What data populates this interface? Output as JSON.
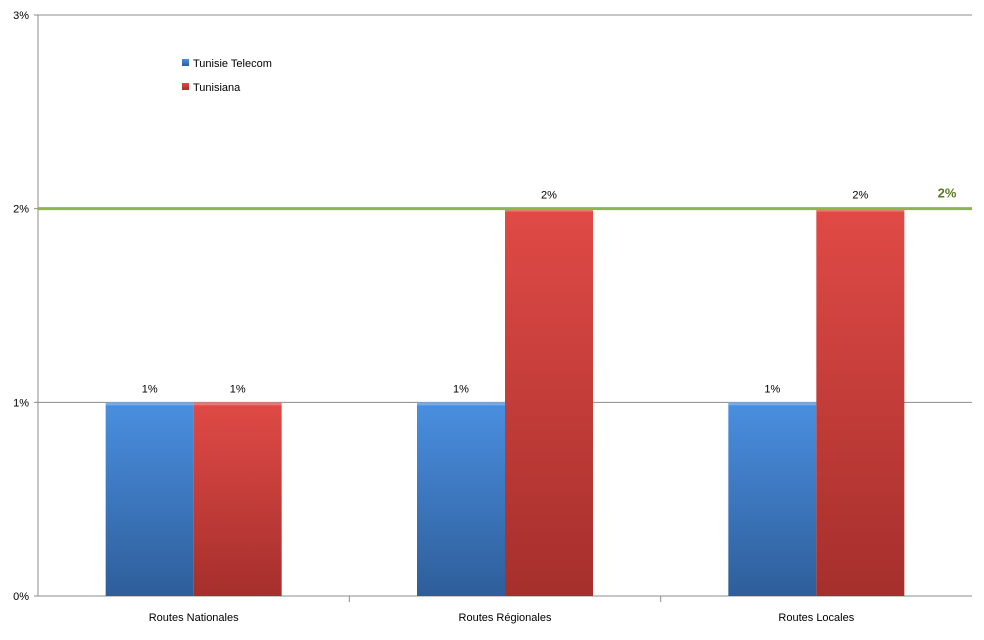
{
  "chart_data": {
    "type": "bar",
    "categories": [
      "Routes Nationales",
      "Routes Régionales",
      "Routes Locales"
    ],
    "series": [
      {
        "name": "Tunisie Telecom",
        "values": [
          1,
          1,
          1
        ],
        "labels": [
          "1%",
          "1%",
          "1%"
        ],
        "color": "#3d7fd4"
      },
      {
        "name": "Tunisiana",
        "values": [
          1,
          2,
          2
        ],
        "labels": [
          "1%",
          "2%",
          "2%"
        ],
        "color": "#d63f3c"
      }
    ],
    "ylim": [
      0,
      3
    ],
    "yticks": [
      0,
      1,
      2,
      3
    ],
    "ytick_labels": [
      "0%",
      "1%",
      "2%",
      "3%"
    ],
    "grid": true,
    "legend_position": "top-left",
    "reference_line": {
      "value": 2,
      "label": "2%",
      "color": "#8db54b",
      "label_color": "#5a7a2a"
    },
    "title": "",
    "xlabel": "",
    "ylabel": ""
  }
}
